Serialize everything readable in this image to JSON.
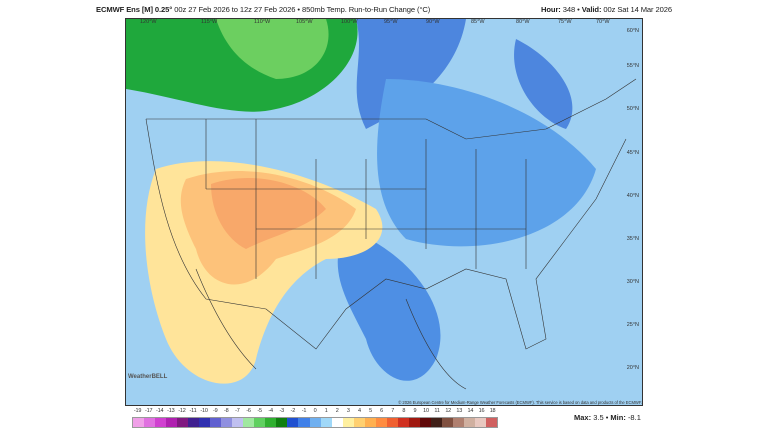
{
  "header": {
    "model": "ECMWF Ens [M] 0.25°",
    "run_info": "00z 27 Feb 2026 to 12z 27 Feb 2026 • 850mb Temp. Run-to-Run Change (°C)",
    "hour_label": "Hour:",
    "hour": "348",
    "valid_label": "Valid:",
    "valid": "00z Sat 14 Mar 2026"
  },
  "map": {
    "longitudes": [
      "120°W",
      "115°W",
      "110°W",
      "105°W",
      "100°W",
      "95°W",
      "90°W",
      "85°W",
      "80°W",
      "75°W",
      "70°W"
    ],
    "latitudes": [
      "60°N",
      "55°N",
      "50°N",
      "45°N",
      "40°N",
      "35°N",
      "30°N",
      "25°N",
      "20°N"
    ],
    "copyright": "© 2026 European Centre for Medium-Range Weather Forecasts (ECMWF). This service is based on data and products of the ECMWF.",
    "logo": "WeatherBELL"
  },
  "colorbar": {
    "ticks": [
      "-19",
      "-17",
      "-14",
      "-13",
      "-12",
      "-11",
      "-10",
      "-9",
      "-8",
      "-7",
      "-6",
      "-5",
      "-4",
      "-3",
      "-2",
      "-1",
      "0",
      "1",
      "2",
      "3",
      "4",
      "5",
      "6",
      "7",
      "8",
      "9",
      "10",
      "11",
      "12",
      "13",
      "14",
      "16",
      "18"
    ],
    "colors": [
      "#f0a0e8",
      "#e070e0",
      "#d040d0",
      "#b020b0",
      "#801880",
      "#402090",
      "#3030b0",
      "#6060d0",
      "#9090e0",
      "#c0c0f0",
      "#a0e8a0",
      "#60d060",
      "#30b030",
      "#108010",
      "#2050d0",
      "#4080e8",
      "#70b0f0",
      "#a0d8f8",
      "#ffffff",
      "#fff0a0",
      "#ffd070",
      "#ffb050",
      "#ff8c40",
      "#f06030",
      "#d03020",
      "#a01810",
      "#600808",
      "#402018",
      "#805040",
      "#b08070",
      "#d0b0a0",
      "#e8c8c0",
      "#d06060"
    ]
  },
  "stats": {
    "max_label": "Max:",
    "max": "3.5",
    "min_label": "Min:",
    "min": "-8.1"
  }
}
